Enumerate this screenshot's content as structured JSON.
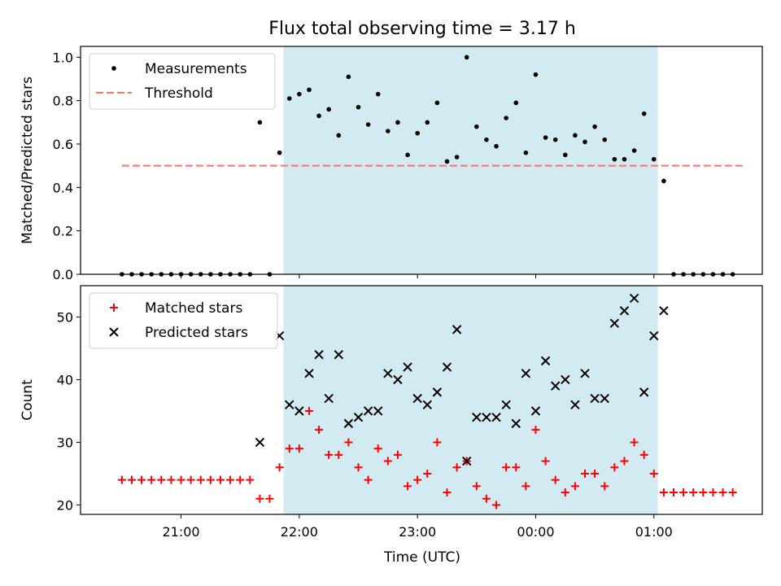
{
  "title": "Flux total observing time = 3.17 h",
  "xlabel": "Time (UTC)",
  "x_ticks": [
    "21:00",
    "22:00",
    "23:00",
    "00:00",
    "01:00"
  ],
  "colors": {
    "shade": "#add8e6",
    "threshold": "#ff6f6f",
    "matched": "#ff0000",
    "predicted": "#000000",
    "measure": "#000000"
  },
  "chart_data": [
    {
      "type": "scatter",
      "ylabel": "Matched/Predicted stars",
      "ylim": [
        0,
        1.05
      ],
      "y_ticks": [
        "0.0",
        "0.2",
        "0.4",
        "0.6",
        "0.8",
        "1.0"
      ],
      "legend": [
        "Measurements",
        "Threshold"
      ],
      "legend_position": "upper-left",
      "shaded_interval": [
        "21:52",
        "01:02"
      ],
      "threshold": {
        "value": 0.5,
        "x_range": [
          "20:30",
          "01:45"
        ]
      },
      "series": [
        {
          "name": "Measurements",
          "x": [
            "20:30",
            "20:35",
            "20:40",
            "20:45",
            "20:50",
            "20:55",
            "21:00",
            "21:05",
            "21:10",
            "21:15",
            "21:20",
            "21:25",
            "21:30",
            "21:35",
            "21:40",
            "21:45",
            "21:50",
            "21:55",
            "22:00",
            "22:05",
            "22:10",
            "22:15",
            "22:20",
            "22:25",
            "22:30",
            "22:35",
            "22:40",
            "22:45",
            "22:50",
            "22:55",
            "23:00",
            "23:05",
            "23:10",
            "23:15",
            "23:20",
            "23:25",
            "23:30",
            "23:35",
            "23:40",
            "23:45",
            "23:50",
            "23:55",
            "00:00",
            "00:05",
            "00:10",
            "00:15",
            "00:20",
            "00:25",
            "00:30",
            "00:35",
            "00:40",
            "00:45",
            "00:50",
            "00:55",
            "01:00",
            "01:05",
            "01:10",
            "01:15",
            "01:20",
            "01:25",
            "01:30",
            "01:35",
            "01:40"
          ],
          "y": [
            0,
            0,
            0,
            0,
            0,
            0,
            0,
            0,
            0,
            0,
            0,
            0,
            0,
            0,
            0.7,
            0,
            0.56,
            0.81,
            0.83,
            0.85,
            0.73,
            0.76,
            0.64,
            0.91,
            0.77,
            0.69,
            0.83,
            0.66,
            0.7,
            0.55,
            0.65,
            0.7,
            0.79,
            0.52,
            0.54,
            1.0,
            0.68,
            0.62,
            0.59,
            0.72,
            0.79,
            0.56,
            0.92,
            0.63,
            0.62,
            0.55,
            0.64,
            0.61,
            0.68,
            0.62,
            0.53,
            0.53,
            0.57,
            0.74,
            0.53,
            0.43,
            0,
            0,
            0,
            0,
            0,
            0,
            0
          ]
        }
      ]
    },
    {
      "type": "scatter",
      "ylabel": "Count",
      "ylim": [
        18.5,
        55
      ],
      "y_ticks": [
        "20",
        "30",
        "40",
        "50"
      ],
      "legend": [
        "Matched stars",
        "Predicted stars"
      ],
      "legend_position": "upper-left",
      "shaded_interval": [
        "21:52",
        "01:02"
      ],
      "series": [
        {
          "name": "Matched stars",
          "marker": "+",
          "x": [
            "20:30",
            "20:35",
            "20:40",
            "20:45",
            "20:50",
            "20:55",
            "21:00",
            "21:05",
            "21:10",
            "21:15",
            "21:20",
            "21:25",
            "21:30",
            "21:35",
            "21:40",
            "21:45",
            "21:50",
            "21:55",
            "22:00",
            "22:05",
            "22:10",
            "22:15",
            "22:20",
            "22:25",
            "22:30",
            "22:35",
            "22:40",
            "22:45",
            "22:50",
            "22:55",
            "23:00",
            "23:05",
            "23:10",
            "23:15",
            "23:20",
            "23:25",
            "23:30",
            "23:35",
            "23:40",
            "23:45",
            "23:50",
            "23:55",
            "00:00",
            "00:05",
            "00:10",
            "00:15",
            "00:20",
            "00:25",
            "00:30",
            "00:35",
            "00:40",
            "00:45",
            "00:50",
            "00:55",
            "01:00",
            "01:05",
            "01:10",
            "01:15",
            "01:20",
            "01:25",
            "01:30",
            "01:35",
            "01:40"
          ],
          "y": [
            24,
            24,
            24,
            24,
            24,
            24,
            24,
            24,
            24,
            24,
            24,
            24,
            24,
            24,
            21,
            21,
            26,
            29,
            29,
            35,
            32,
            28,
            28,
            30,
            26,
            24,
            29,
            27,
            28,
            23,
            24,
            25,
            30,
            22,
            26,
            27,
            23,
            21,
            20,
            26,
            26,
            23,
            32,
            27,
            24,
            22,
            23,
            25,
            25,
            23,
            26,
            27,
            30,
            28,
            25,
            22,
            22,
            22,
            22,
            22,
            22,
            22,
            22
          ]
        },
        {
          "name": "Predicted stars",
          "marker": "x",
          "x": [
            "21:40",
            "21:50",
            "21:55",
            "22:00",
            "22:05",
            "22:10",
            "22:15",
            "22:20",
            "22:25",
            "22:30",
            "22:35",
            "22:40",
            "22:45",
            "22:50",
            "22:55",
            "23:00",
            "23:05",
            "23:10",
            "23:15",
            "23:20",
            "23:25",
            "23:30",
            "23:35",
            "23:40",
            "23:45",
            "23:50",
            "23:55",
            "00:00",
            "00:05",
            "00:10",
            "00:15",
            "00:20",
            "00:25",
            "00:30",
            "00:35",
            "00:40",
            "00:45",
            "00:50",
            "00:55",
            "01:00",
            "01:05"
          ],
          "y": [
            30,
            47,
            36,
            35,
            41,
            44,
            37,
            44,
            33,
            34,
            35,
            35,
            41,
            40,
            42,
            37,
            36,
            38,
            42,
            48,
            27,
            34,
            34,
            34,
            36,
            33,
            41,
            35,
            43,
            39,
            40,
            36,
            41,
            37,
            37,
            49,
            51,
            53,
            38,
            47,
            51
          ]
        }
      ]
    }
  ]
}
